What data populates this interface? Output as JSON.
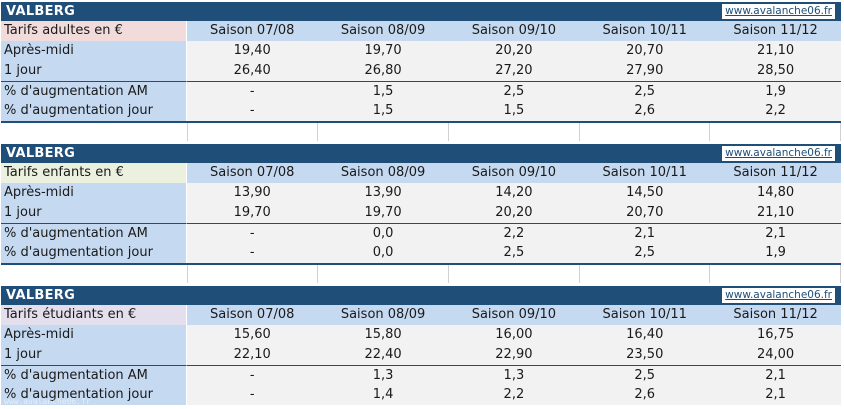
{
  "site_url": "www.avalanche06.fr",
  "watermark": "www.avalanche06.fr",
  "seasons": [
    "Saison 07/08",
    "Saison 08/09",
    "Saison 09/10",
    "Saison 10/11",
    "Saison 11/12"
  ],
  "colors": {
    "title_bar": "#1f4e79",
    "label_bg": "#c5d9f1",
    "adult_header_bg": "#f2dcdb",
    "child_header_bg": "#ebf1de",
    "student_header_bg": "#e4dfec"
  },
  "tables": [
    {
      "station": "VALBERG",
      "header_label": "Tarifs adultes en €",
      "rows": [
        {
          "label": "Après-midi",
          "values": [
            "19,40",
            "19,70",
            "20,20",
            "20,70",
            "21,10"
          ]
        },
        {
          "label": "1 jour",
          "values": [
            "26,40",
            "26,80",
            "27,20",
            "27,90",
            "28,50"
          ]
        },
        {
          "label": "% d'augmentation AM",
          "values": [
            "-",
            "1,5",
            "2,5",
            "2,5",
            "1,9"
          ]
        },
        {
          "label": "% d'augmentation jour",
          "values": [
            "-",
            "1,5",
            "1,5",
            "2,6",
            "2,2"
          ]
        }
      ]
    },
    {
      "station": "VALBERG",
      "header_label": "Tarifs enfants en €",
      "rows": [
        {
          "label": "Après-midi",
          "values": [
            "13,90",
            "13,90",
            "14,20",
            "14,50",
            "14,80"
          ]
        },
        {
          "label": "1 jour",
          "values": [
            "19,70",
            "19,70",
            "20,20",
            "20,70",
            "21,10"
          ]
        },
        {
          "label": "% d'augmentation AM",
          "values": [
            "-",
            "0,0",
            "2,2",
            "2,1",
            "2,1"
          ]
        },
        {
          "label": "% d'augmentation jour",
          "values": [
            "-",
            "0,0",
            "2,5",
            "2,5",
            "1,9"
          ]
        }
      ]
    },
    {
      "station": "VALBERG",
      "header_label": "Tarifs étudiants en €",
      "rows": [
        {
          "label": "Après-midi",
          "values": [
            "15,60",
            "15,80",
            "16,00",
            "16,40",
            "16,75"
          ]
        },
        {
          "label": "1 jour",
          "values": [
            "22,10",
            "22,40",
            "22,90",
            "23,50",
            "24,00"
          ]
        },
        {
          "label": "% d'augmentation AM",
          "values": [
            "-",
            "1,3",
            "1,3",
            "2,5",
            "2,1"
          ]
        },
        {
          "label": "% d'augmentation jour",
          "values": [
            "-",
            "1,4",
            "2,2",
            "2,6",
            "2,1"
          ]
        }
      ]
    }
  ]
}
